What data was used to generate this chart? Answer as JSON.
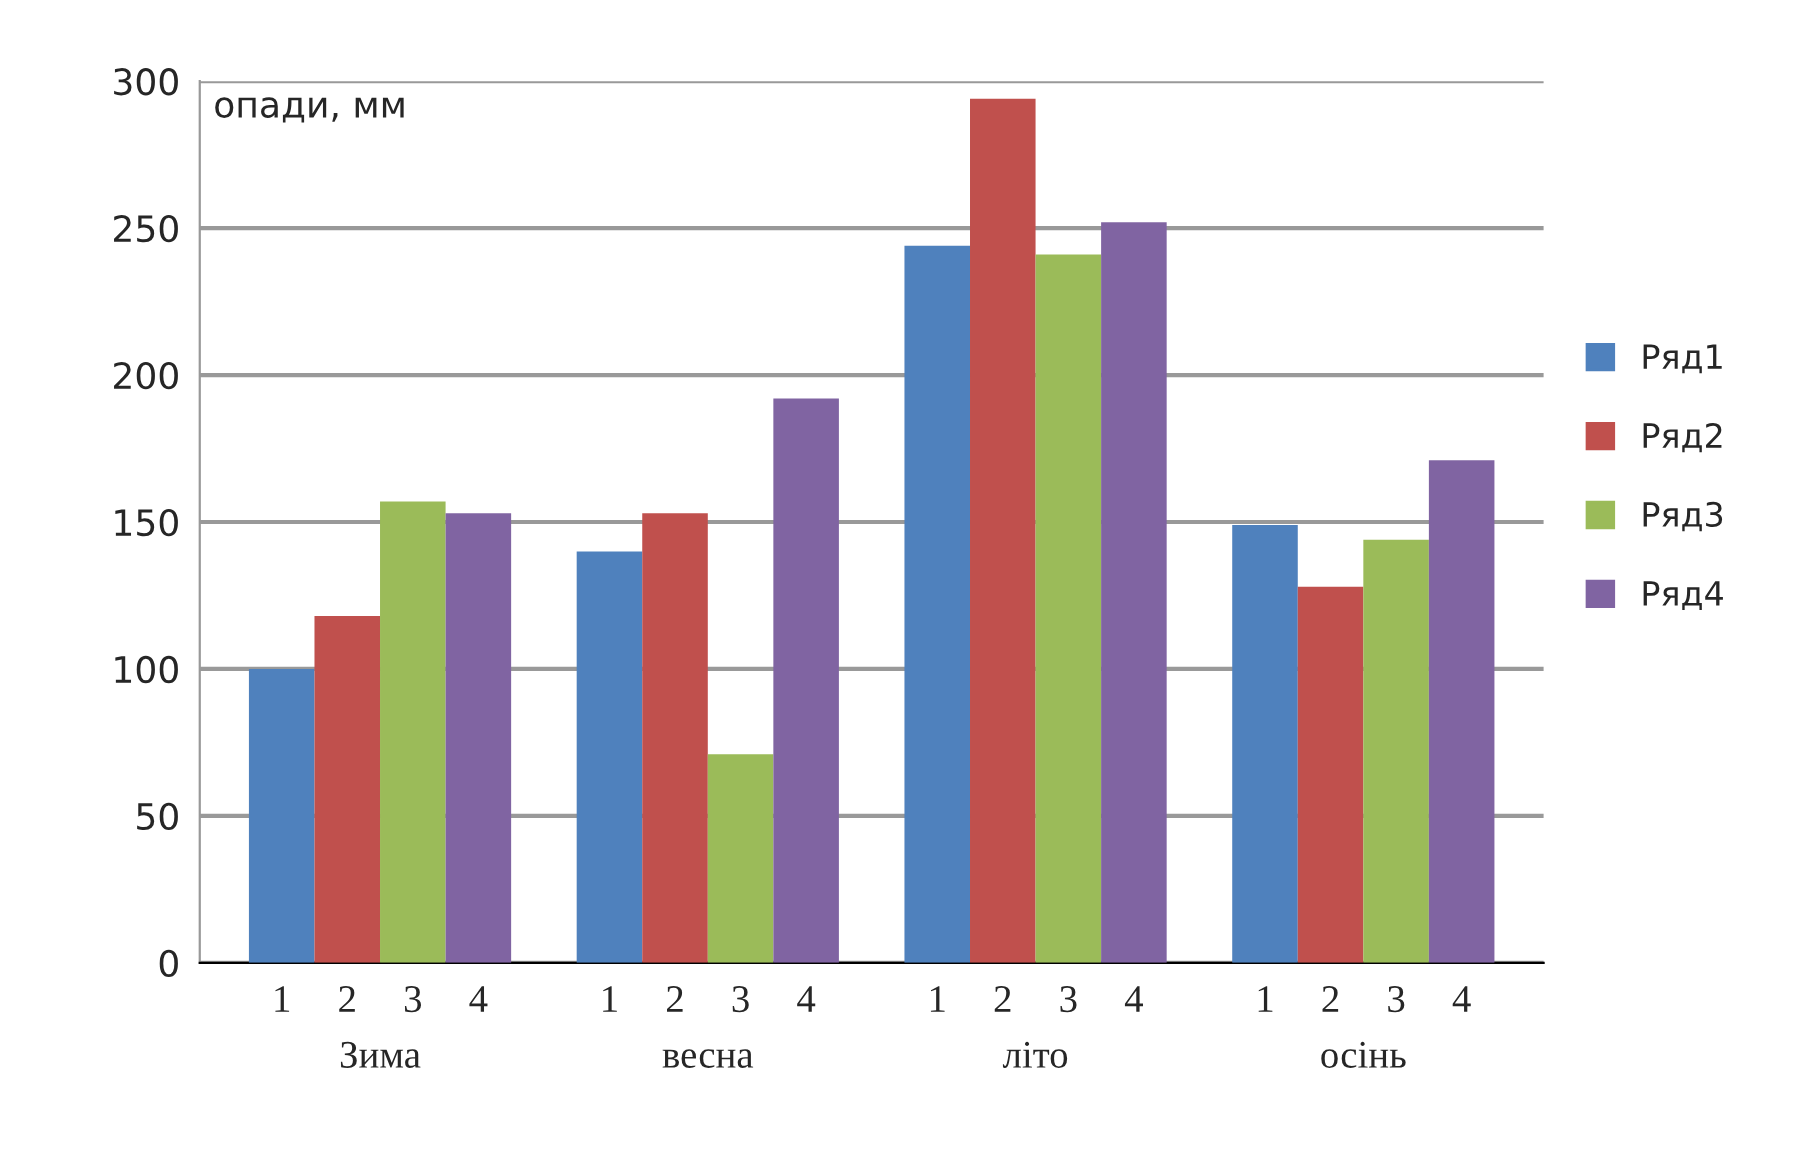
{
  "chart_data": {
    "type": "bar",
    "ylabel": "опади, мм",
    "categories": [
      "Зима",
      "весна",
      "літо",
      "осінь"
    ],
    "series": [
      {
        "name": "Ряд1",
        "color": "#4f81bd",
        "values": [
          100,
          140,
          244,
          149
        ]
      },
      {
        "name": "Ряд2",
        "color": "#c0504d",
        "values": [
          118,
          153,
          294,
          128
        ]
      },
      {
        "name": "Ряд3",
        "color": "#9bbb59",
        "values": [
          157,
          71,
          241,
          144
        ]
      },
      {
        "name": "Ряд4",
        "color": "#8064a2",
        "values": [
          153,
          192,
          252,
          171
        ]
      }
    ],
    "ylim": [
      0,
      300
    ],
    "yticks": [
      0,
      50,
      100,
      150,
      200,
      250,
      300
    ],
    "grid": "y",
    "legend": "right",
    "annotations": [
      "1",
      "2",
      "3",
      "4",
      "1",
      "2",
      "3",
      "4",
      "1",
      "2",
      "3",
      "4",
      "1",
      "2",
      "3",
      "4"
    ]
  }
}
